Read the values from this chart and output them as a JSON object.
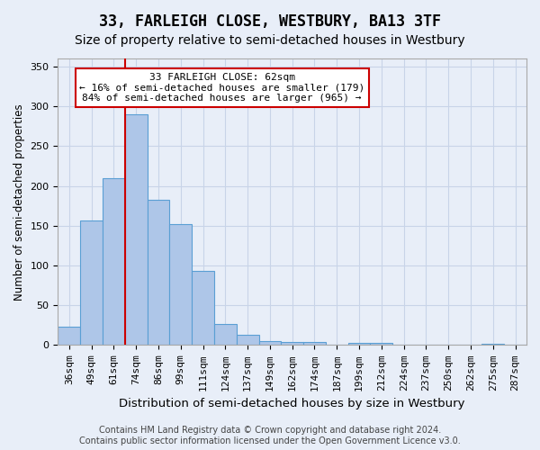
{
  "title": "33, FARLEIGH CLOSE, WESTBURY, BA13 3TF",
  "subtitle": "Size of property relative to semi-detached houses in Westbury",
  "xlabel": "Distribution of semi-detached houses by size in Westbury",
  "ylabel": "Number of semi-detached properties",
  "categories": [
    "36sqm",
    "49sqm",
    "61sqm",
    "74sqm",
    "86sqm",
    "99sqm",
    "111sqm",
    "124sqm",
    "137sqm",
    "149sqm",
    "162sqm",
    "174sqm",
    "187sqm",
    "199sqm",
    "212sqm",
    "224sqm",
    "237sqm",
    "250sqm",
    "262sqm",
    "275sqm",
    "287sqm"
  ],
  "values": [
    23,
    156,
    210,
    290,
    182,
    152,
    93,
    27,
    13,
    5,
    4,
    4,
    0,
    3,
    3,
    0,
    1,
    0,
    0,
    2,
    0
  ],
  "bar_color": "#aec6e8",
  "bar_edge_color": "#5a9fd4",
  "background_color": "#e8eef8",
  "grid_color": "#c8d4e8",
  "vline_color": "#cc0000",
  "vline_x": 2.5,
  "annotation_line1": "33 FARLEIGH CLOSE: 62sqm",
  "annotation_line2": "← 16% of semi-detached houses are smaller (179)",
  "annotation_line3": "84% of semi-detached houses are larger (965) →",
  "annotation_box_color": "white",
  "annotation_box_edge": "#cc0000",
  "footnote": "Contains HM Land Registry data © Crown copyright and database right 2024.\nContains public sector information licensed under the Open Government Licence v3.0.",
  "ylim": [
    0,
    360
  ],
  "title_fontsize": 12,
  "subtitle_fontsize": 10,
  "xlabel_fontsize": 9.5,
  "ylabel_fontsize": 8.5,
  "tick_fontsize": 8,
  "annotation_fontsize": 8,
  "footnote_fontsize": 7
}
